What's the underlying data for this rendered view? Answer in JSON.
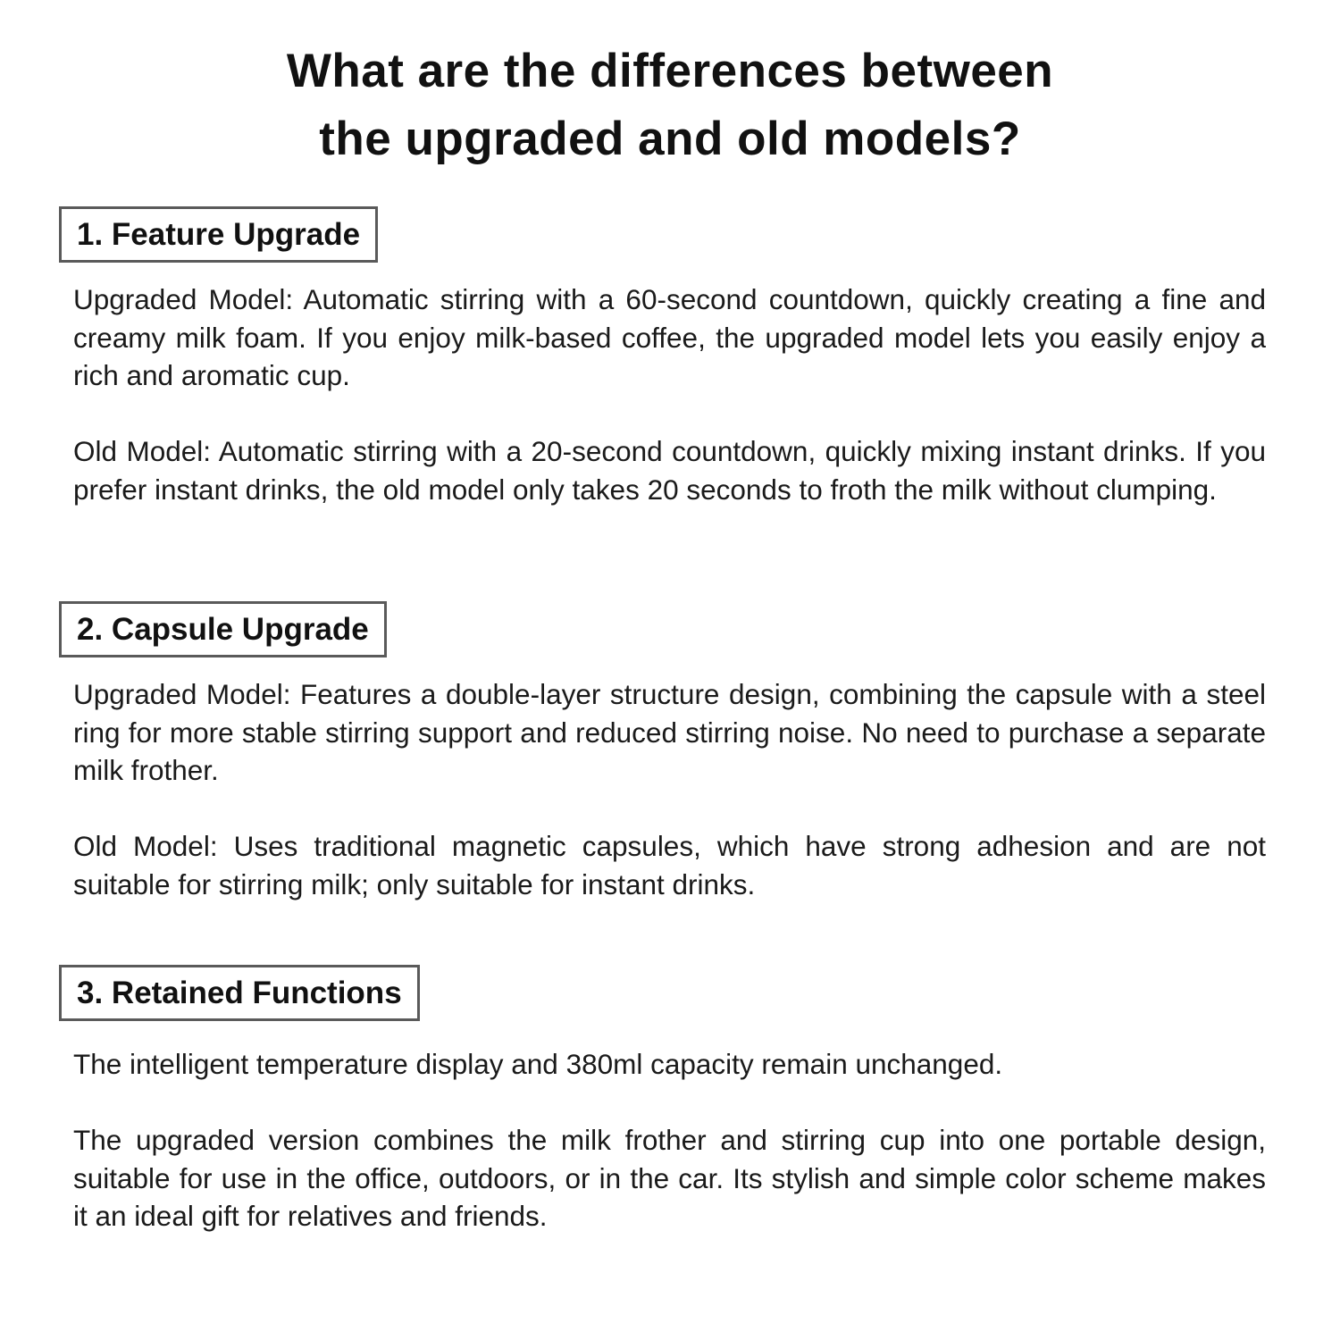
{
  "title": {
    "line1": "What are the differences between",
    "line2": "the upgraded and old models?"
  },
  "sections": [
    {
      "heading": "1. Feature Upgrade",
      "paragraphs": [
        "Upgraded Model: Automatic stirring with a 60-second countdown, quickly creating a fine and creamy milk foam. If you enjoy milk-based coffee, the upgraded model lets you easily enjoy a rich and aromatic cup.",
        "Old Model: Automatic stirring with a 20-second countdown, quickly mixing instant drinks. If you prefer instant drinks, the old model only takes 20 seconds to froth the milk without clumping."
      ]
    },
    {
      "heading": "2. Capsule Upgrade",
      "paragraphs": [
        "Upgraded Model: Features a double-layer structure design, combining the capsule with a steel ring for more stable stirring support and reduced stirring noise. No need to purchase a separate milk frother.",
        "Old Model: Uses traditional magnetic capsules, which have strong adhesion and are not suitable for stirring milk; only suitable for instant drinks."
      ]
    },
    {
      "heading": "3. Retained Functions",
      "paragraphs": [
        "The intelligent temperature display and 380ml capacity remain unchanged.",
        "The upgraded version combines the milk frother and stirring cup into one portable design, suitable for use in the office, outdoors, or in the car. Its stylish and simple color scheme makes it an ideal gift for relatives and friends."
      ]
    }
  ]
}
